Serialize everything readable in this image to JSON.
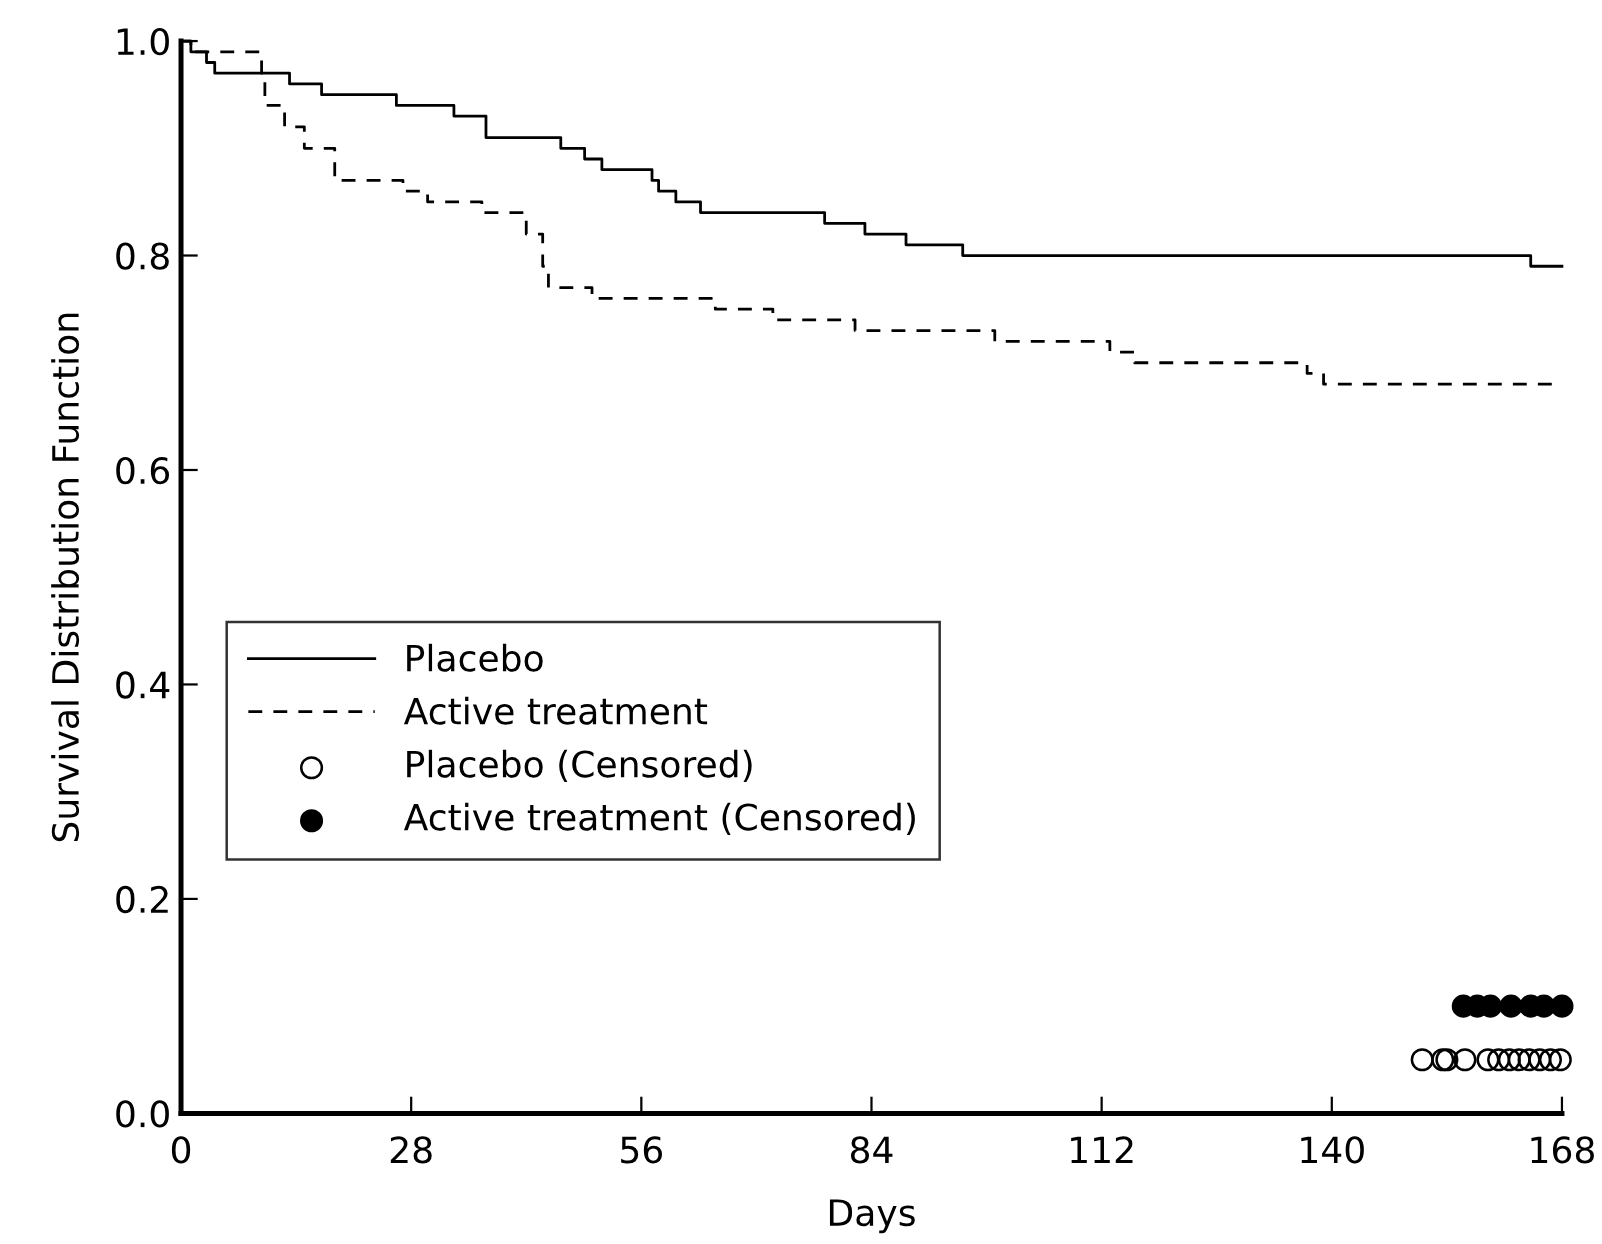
{
  "chart_data": {
    "type": "step",
    "xlabel": "Days",
    "ylabel": "Survival Distribution Function",
    "xlim": [
      0,
      168
    ],
    "xticks": [
      0,
      28,
      56,
      84,
      112,
      140,
      168
    ],
    "ylim": [
      0,
      1
    ],
    "yticks": [
      {
        "value": 0,
        "label": "0.0"
      },
      0.2,
      0.4,
      0.6,
      0.8,
      {
        "value": 1,
        "label": "1.0"
      }
    ],
    "grid": false,
    "legend": "left",
    "series": [
      {
        "name": "Placebo",
        "color": "#000000",
        "line_style": "solid",
        "x": [
          0,
          1.2,
          3.1,
          4.1,
          13.2,
          17.1,
          26.2,
          33.2,
          37.1,
          46.2,
          49.1,
          51.2,
          57.3,
          58.1,
          60.2,
          63.2,
          78.3,
          83.2,
          88.2,
          95.1,
          164.2,
          168
        ],
        "values": [
          1.0,
          0.99,
          0.98,
          0.97,
          0.96,
          0.95,
          0.94,
          0.93,
          0.91,
          0.9,
          0.89,
          0.88,
          0.87,
          0.86,
          0.85,
          0.84,
          0.83,
          0.82,
          0.81,
          0.8,
          0.79,
          0.79
        ]
      },
      {
        "name": "Active treatment",
        "color": "#000000",
        "line_style": "dashed",
        "x": [
          0,
          1.2,
          9.8,
          10.2,
          12.6,
          15,
          18.7,
          27,
          30,
          36.6,
          42,
          44,
          44.7,
          50,
          65,
          72,
          82,
          99,
          113,
          116,
          137,
          139,
          168
        ],
        "values": [
          1.0,
          0.99,
          0.97,
          0.94,
          0.92,
          0.9,
          0.87,
          0.86,
          0.85,
          0.84,
          0.82,
          0.79,
          0.77,
          0.76,
          0.75,
          0.74,
          0.73,
          0.72,
          0.71,
          0.7,
          0.69,
          0.68,
          0.68
        ]
      },
      {
        "name": "Placebo (Censored)",
        "type": "scatter",
        "marker": "circle",
        "color": "#000000",
        "x": [
          151,
          153.5,
          154,
          156.2,
          159,
          160.3,
          161.6,
          162.8,
          164,
          165.3,
          166.6,
          167.8
        ],
        "values": [
          0.05,
          0.05,
          0.05,
          0.05,
          0.05,
          0.05,
          0.05,
          0.05,
          0.05,
          0.05,
          0.05,
          0.05
        ]
      },
      {
        "name": "Active treatment (Censored)",
        "type": "scatter",
        "marker": "circle",
        "color": "#000000",
        "x": [
          156,
          157.7,
          159.3,
          161.8,
          164.2,
          165.8,
          168
        ],
        "values": [
          0.1,
          0.1,
          0.1,
          0.1,
          0.1,
          0.1,
          0.1
        ]
      }
    ]
  }
}
